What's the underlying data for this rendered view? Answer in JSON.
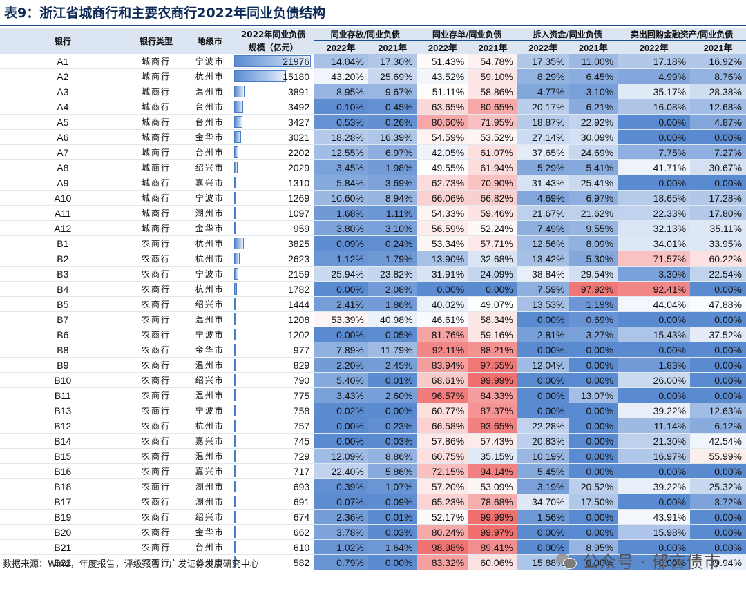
{
  "title": "表9：浙江省城商行和主要农商行2022年同业负债结构",
  "headers": {
    "bank": "银行",
    "type": "银行类型",
    "city": "地级市",
    "scale_line1": "2022年同业负债",
    "scale_line2": "规模（亿元）",
    "groups": [
      "同业存放/同业负债",
      "同业存单/同业负债",
      "拆入资金/同业负债",
      "卖出回购金融资产/同业负债"
    ],
    "years": [
      "2022年",
      "2021年"
    ]
  },
  "max_scale": 21976,
  "rows": [
    [
      "A1",
      "城商行",
      "宁波市",
      "21976",
      "14.04%",
      "17.30%",
      "51.43%",
      "54.78%",
      "17.35%",
      "11.00%",
      "17.18%",
      "16.92%"
    ],
    [
      "A2",
      "城商行",
      "杭州市",
      "15180",
      "43.20%",
      "25.69%",
      "43.52%",
      "59.10%",
      "8.29%",
      "6.45%",
      "4.99%",
      "8.76%"
    ],
    [
      "A3",
      "城商行",
      "温州市",
      "3891",
      "8.95%",
      "9.67%",
      "51.11%",
      "58.86%",
      "4.77%",
      "3.10%",
      "35.17%",
      "28.38%"
    ],
    [
      "A4",
      "城商行",
      "台州市",
      "3492",
      "0.10%",
      "0.45%",
      "63.65%",
      "80.65%",
      "20.17%",
      "6.21%",
      "16.08%",
      "12.68%"
    ],
    [
      "A5",
      "城商行",
      "台州市",
      "3427",
      "0.53%",
      "0.26%",
      "80.60%",
      "71.95%",
      "18.87%",
      "22.92%",
      "0.00%",
      "4.87%"
    ],
    [
      "A6",
      "城商行",
      "金华市",
      "3021",
      "18.28%",
      "16.39%",
      "54.59%",
      "53.52%",
      "27.14%",
      "30.09%",
      "0.00%",
      "0.00%"
    ],
    [
      "A7",
      "城商行",
      "台州市",
      "2202",
      "12.55%",
      "6.97%",
      "42.05%",
      "61.07%",
      "37.65%",
      "24.69%",
      "7.75%",
      "7.27%"
    ],
    [
      "A8",
      "城商行",
      "绍兴市",
      "2029",
      "3.45%",
      "1.98%",
      "49.55%",
      "61.94%",
      "5.29%",
      "5.41%",
      "41.71%",
      "30.67%"
    ],
    [
      "A9",
      "城商行",
      "嘉兴市",
      "1310",
      "5.84%",
      "3.69%",
      "62.73%",
      "70.90%",
      "31.43%",
      "25.41%",
      "0.00%",
      "0.00%"
    ],
    [
      "A10",
      "城商行",
      "宁波市",
      "1269",
      "10.60%",
      "8.94%",
      "66.06%",
      "66.82%",
      "4.69%",
      "6.97%",
      "18.65%",
      "17.28%"
    ],
    [
      "A11",
      "城商行",
      "湖州市",
      "1097",
      "1.68%",
      "1.11%",
      "54.33%",
      "59.46%",
      "21.67%",
      "21.62%",
      "22.33%",
      "17.80%"
    ],
    [
      "A12",
      "城商行",
      "金华市",
      "959",
      "3.80%",
      "3.10%",
      "56.59%",
      "52.24%",
      "7.49%",
      "9.55%",
      "32.13%",
      "35.11%"
    ],
    [
      "B1",
      "农商行",
      "杭州市",
      "3825",
      "0.09%",
      "0.24%",
      "53.34%",
      "57.71%",
      "12.56%",
      "8.09%",
      "34.01%",
      "33.95%"
    ],
    [
      "B2",
      "农商行",
      "杭州市",
      "2623",
      "1.12%",
      "1.79%",
      "13.90%",
      "32.68%",
      "13.42%",
      "5.30%",
      "71.57%",
      "60.22%"
    ],
    [
      "B3",
      "农商行",
      "宁波市",
      "2159",
      "25.94%",
      "23.82%",
      "31.91%",
      "24.09%",
      "38.84%",
      "29.54%",
      "3.30%",
      "22.54%"
    ],
    [
      "B4",
      "农商行",
      "杭州市",
      "1782",
      "0.00%",
      "2.08%",
      "0.00%",
      "0.00%",
      "7.59%",
      "97.92%",
      "92.41%",
      "0.00%"
    ],
    [
      "B5",
      "农商行",
      "绍兴市",
      "1444",
      "2.41%",
      "1.86%",
      "40.02%",
      "49.07%",
      "13.53%",
      "1.19%",
      "44.04%",
      "47.88%"
    ],
    [
      "B7",
      "农商行",
      "温州市",
      "1208",
      "53.39%",
      "40.98%",
      "46.61%",
      "58.34%",
      "0.00%",
      "0.69%",
      "0.00%",
      "0.00%"
    ],
    [
      "B6",
      "农商行",
      "宁波市",
      "1202",
      "0.00%",
      "0.05%",
      "81.76%",
      "59.16%",
      "2.81%",
      "3.27%",
      "15.43%",
      "37.52%"
    ],
    [
      "B8",
      "农商行",
      "金华市",
      "977",
      "7.89%",
      "11.79%",
      "92.11%",
      "88.21%",
      "0.00%",
      "0.00%",
      "0.00%",
      "0.00%"
    ],
    [
      "B9",
      "农商行",
      "温州市",
      "829",
      "2.20%",
      "2.45%",
      "83.94%",
      "97.55%",
      "12.04%",
      "0.00%",
      "1.83%",
      "0.00%"
    ],
    [
      "B10",
      "农商行",
      "绍兴市",
      "790",
      "5.40%",
      "0.01%",
      "68.61%",
      "99.99%",
      "0.00%",
      "0.00%",
      "26.00%",
      "0.00%"
    ],
    [
      "B11",
      "农商行",
      "温州市",
      "775",
      "3.43%",
      "2.60%",
      "96.57%",
      "84.33%",
      "0.00%",
      "13.07%",
      "0.00%",
      "0.00%"
    ],
    [
      "B13",
      "农商行",
      "宁波市",
      "758",
      "0.02%",
      "0.00%",
      "60.77%",
      "87.37%",
      "0.00%",
      "0.00%",
      "39.22%",
      "12.63%"
    ],
    [
      "B12",
      "农商行",
      "杭州市",
      "757",
      "0.00%",
      "0.23%",
      "66.58%",
      "93.65%",
      "22.28%",
      "0.00%",
      "11.14%",
      "6.12%"
    ],
    [
      "B14",
      "农商行",
      "嘉兴市",
      "745",
      "0.00%",
      "0.03%",
      "57.86%",
      "57.43%",
      "20.83%",
      "0.00%",
      "21.30%",
      "42.54%"
    ],
    [
      "B15",
      "农商行",
      "温州市",
      "729",
      "12.09%",
      "8.86%",
      "60.75%",
      "35.15%",
      "10.19%",
      "0.00%",
      "16.97%",
      "55.99%"
    ],
    [
      "B16",
      "农商行",
      "嘉兴市",
      "717",
      "22.40%",
      "5.86%",
      "72.15%",
      "94.14%",
      "5.45%",
      "0.00%",
      "0.00%",
      "0.00%"
    ],
    [
      "B18",
      "农商行",
      "湖州市",
      "693",
      "0.39%",
      "1.07%",
      "57.20%",
      "53.09%",
      "3.19%",
      "20.52%",
      "39.22%",
      "25.32%"
    ],
    [
      "B17",
      "农商行",
      "湖州市",
      "691",
      "0.07%",
      "0.09%",
      "65.23%",
      "78.68%",
      "34.70%",
      "17.50%",
      "0.00%",
      "3.72%"
    ],
    [
      "B19",
      "农商行",
      "绍兴市",
      "674",
      "2.36%",
      "0.01%",
      "52.17%",
      "99.99%",
      "1.56%",
      "0.00%",
      "43.91%",
      "0.00%"
    ],
    [
      "B20",
      "农商行",
      "金华市",
      "662",
      "3.78%",
      "0.03%",
      "80.24%",
      "99.97%",
      "0.00%",
      "0.00%",
      "15.98%",
      "0.00%"
    ],
    [
      "B21",
      "农商行",
      "台州市",
      "610",
      "1.02%",
      "1.64%",
      "98.98%",
      "89.41%",
      "0.00%",
      "8.95%",
      "0.00%",
      "0.00%"
    ],
    [
      "B22",
      "农商行",
      "台州市",
      "582",
      "0.79%",
      "0.00%",
      "83.32%",
      "60.06%",
      "15.88%",
      "0.00%",
      "0.00%",
      "39.94%"
    ]
  ],
  "footer": "数据来源：Wind，年度报告，评级报告，广发证券发展研究中心",
  "watermark": "公众号 · 郁言债市",
  "watermark_icon": "wechat-icon",
  "colors": {
    "low": "#5a8ad0",
    "mid": "#ffffff",
    "high": "#f07070",
    "header_bg": "#dce6f2"
  }
}
